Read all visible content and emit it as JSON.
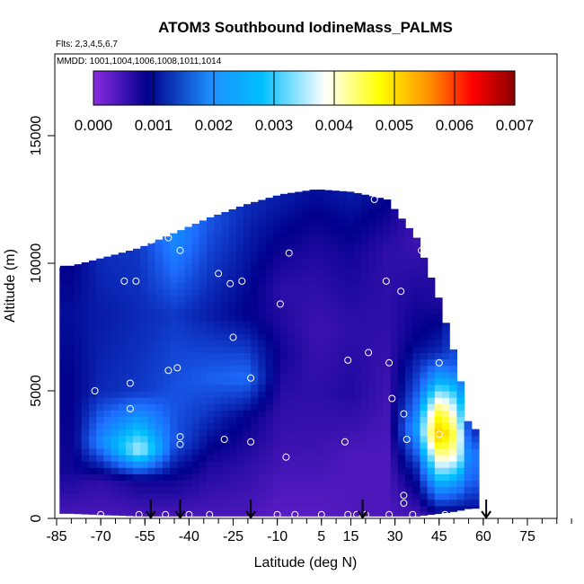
{
  "chart_data": {
    "type": "heatmap",
    "title": "ATOM3 Southbound IodineMass_PALMS",
    "subtitle_flights": "Flts: 2,3,4,5,6,7",
    "subtitle_dates": "MMDD: 1001,1004,1006,1008,1011,1014",
    "xlabel": "Latitude (deg N)",
    "ylabel": "Altitude (m)",
    "xlim": [
      -85,
      90
    ],
    "ylim": [
      0,
      17500
    ],
    "xticks": [
      -85,
      -70,
      -55,
      -40,
      -25,
      -10,
      5,
      15,
      30,
      45,
      60,
      75
    ],
    "yticks": [
      0,
      5000,
      10000,
      15000
    ],
    "colorbar": {
      "range": [
        0,
        0.007
      ],
      "ticks": [
        "0.000",
        "0.001",
        "0.002",
        "0.003",
        "0.004",
        "0.005",
        "0.006",
        "0.007"
      ],
      "colors": [
        "#8a2be2",
        "#00008b",
        "#1e90ff",
        "#00bfff",
        "#ffffff",
        "#ffff00",
        "#ff8c00",
        "#ff0000",
        "#8b0000"
      ]
    },
    "columns": [
      {
        "x": -81,
        "ymin": 200,
        "ymax": 9900,
        "values": [
          [
            0,
            0.0004
          ],
          [
            2000,
            0.0008
          ],
          [
            5000,
            0.0009
          ],
          [
            8000,
            0.001
          ],
          [
            9900,
            0.0009
          ]
        ]
      },
      {
        "x": -71,
        "ymin": 150,
        "ymax": 10200,
        "values": [
          [
            0,
            0.0004
          ],
          [
            1500,
            0.0006
          ],
          [
            3000,
            0.002
          ],
          [
            5000,
            0.0012
          ],
          [
            8000,
            0.0011
          ],
          [
            10000,
            0.0012
          ]
        ]
      },
      {
        "x": -58,
        "ymin": 100,
        "ymax": 10600,
        "values": [
          [
            0,
            0.0004
          ],
          [
            1500,
            0.0008
          ],
          [
            2700,
            0.0033
          ],
          [
            3500,
            0.0025
          ],
          [
            5000,
            0.0013
          ],
          [
            8000,
            0.0012
          ],
          [
            10500,
            0.0013
          ]
        ]
      },
      {
        "x": -46,
        "ymin": 100,
        "ymax": 11200,
        "values": [
          [
            0,
            0.0004
          ],
          [
            1500,
            0.0008
          ],
          [
            3000,
            0.0015
          ],
          [
            5000,
            0.0015
          ],
          [
            8000,
            0.0013
          ],
          [
            11000,
            0.002
          ]
        ]
      },
      {
        "x": -34,
        "ymin": 100,
        "ymax": 11800,
        "values": [
          [
            0,
            0.0004
          ],
          [
            2000,
            0.0007
          ],
          [
            3500,
            0.0011
          ],
          [
            5500,
            0.0016
          ],
          [
            8000,
            0.0011
          ],
          [
            11500,
            0.0015
          ]
        ]
      },
      {
        "x": -22,
        "ymin": 100,
        "ymax": 12300,
        "values": [
          [
            0,
            0.0004
          ],
          [
            2000,
            0.0006
          ],
          [
            4000,
            0.0009
          ],
          [
            5500,
            0.0017
          ],
          [
            8000,
            0.0009
          ],
          [
            12000,
            0.0012
          ]
        ]
      },
      {
        "x": -10,
        "ymin": 100,
        "ymax": 12700,
        "values": [
          [
            0,
            0.0003
          ],
          [
            2500,
            0.0005
          ],
          [
            4500,
            0.0006
          ],
          [
            6500,
            0.0008
          ],
          [
            9000,
            0.0006
          ],
          [
            12500,
            0.0011
          ]
        ]
      },
      {
        "x": 2,
        "ymin": 100,
        "ymax": 12900,
        "values": [
          [
            0,
            0.0003
          ],
          [
            2500,
            0.0005
          ],
          [
            5000,
            0.0006
          ],
          [
            7500,
            0.0005
          ],
          [
            10500,
            0.0007
          ],
          [
            12800,
            0.001
          ]
        ]
      },
      {
        "x": 14,
        "ymin": 100,
        "ymax": 12800,
        "values": [
          [
            0,
            0.0004
          ],
          [
            2500,
            0.0004
          ],
          [
            5000,
            0.0007
          ],
          [
            7500,
            0.0006
          ],
          [
            10500,
            0.0008
          ],
          [
            12700,
            0.0011
          ]
        ]
      },
      {
        "x": 26,
        "ymin": 100,
        "ymax": 12500,
        "values": [
          [
            0,
            0.0004
          ],
          [
            2500,
            0.0004
          ],
          [
            5000,
            0.0005
          ],
          [
            7500,
            0.0006
          ],
          [
            10500,
            0.0006
          ],
          [
            12400,
            0.0009
          ]
        ]
      },
      {
        "x": 36,
        "ymin": 100,
        "ymax": 11000,
        "values": [
          [
            0,
            0.0004
          ],
          [
            2000,
            0.0012
          ],
          [
            3500,
            0.0022
          ],
          [
            5000,
            0.0015
          ],
          [
            7000,
            0.0009
          ],
          [
            10000,
            0.0006
          ],
          [
            11000,
            0.0005
          ]
        ]
      },
      {
        "x": 44,
        "ymin": 200,
        "ymax": 8500,
        "values": [
          [
            0,
            0.0006
          ],
          [
            1500,
            0.0025
          ],
          [
            2500,
            0.004
          ],
          [
            3300,
            0.0052
          ],
          [
            4200,
            0.0044
          ],
          [
            5300,
            0.0025
          ],
          [
            6500,
            0.0012
          ],
          [
            8500,
            0.0007
          ]
        ]
      },
      {
        "x": 50,
        "ymin": 300,
        "ymax": 6000,
        "values": [
          [
            0,
            0.0006
          ],
          [
            1500,
            0.0022
          ],
          [
            2500,
            0.0036
          ],
          [
            3300,
            0.004
          ],
          [
            4500,
            0.003
          ],
          [
            6000,
            0.0015
          ]
        ]
      },
      {
        "x": 54,
        "ymin": 400,
        "ymax": 3500,
        "values": [
          [
            0,
            0.0008
          ],
          [
            1500,
            0.0016
          ],
          [
            2500,
            0.0018
          ],
          [
            3500,
            0.0012
          ]
        ]
      }
    ],
    "observation_points": [
      {
        "x": -85,
        "y": 9900
      },
      {
        "x": -72,
        "y": 5000
      },
      {
        "x": -70,
        "y": 150
      },
      {
        "x": -62,
        "y": 9300
      },
      {
        "x": -58,
        "y": 9300
      },
      {
        "x": -60,
        "y": 5300
      },
      {
        "x": -60,
        "y": 4300
      },
      {
        "x": -53,
        "y": 10900
      },
      {
        "x": -47,
        "y": 11000
      },
      {
        "x": -43,
        "y": 10500
      },
      {
        "x": -47,
        "y": 5800
      },
      {
        "x": -44,
        "y": 5900
      },
      {
        "x": -43,
        "y": 3200
      },
      {
        "x": -43,
        "y": 2900
      },
      {
        "x": -30,
        "y": 9600
      },
      {
        "x": -26,
        "y": 9200
      },
      {
        "x": -22,
        "y": 9300
      },
      {
        "x": -25,
        "y": 7100
      },
      {
        "x": -28,
        "y": 3100
      },
      {
        "x": -17,
        "y": 12600
      },
      {
        "x": -19,
        "y": 5500
      },
      {
        "x": -19,
        "y": 3000
      },
      {
        "x": -6,
        "y": 10400
      },
      {
        "x": -9,
        "y": 8400
      },
      {
        "x": -7,
        "y": 2400
      },
      {
        "x": 14,
        "y": 6200
      },
      {
        "x": 13,
        "y": 3000
      },
      {
        "x": 23,
        "y": 12500
      },
      {
        "x": 21,
        "y": 6500
      },
      {
        "x": 27,
        "y": 9300
      },
      {
        "x": 28,
        "y": 6100
      },
      {
        "x": 32,
        "y": 8900
      },
      {
        "x": 29,
        "y": 4700
      },
      {
        "x": 33,
        "y": 4100
      },
      {
        "x": 34,
        "y": 3100
      },
      {
        "x": 39,
        "y": 10500
      },
      {
        "x": 45,
        "y": 6100
      },
      {
        "x": 45,
        "y": 3300
      },
      {
        "x": 33,
        "y": 900
      },
      {
        "x": 33,
        "y": 600
      },
      {
        "x": -57,
        "y": 150
      },
      {
        "x": -48,
        "y": 150
      },
      {
        "x": -40,
        "y": 150
      },
      {
        "x": -33,
        "y": 150
      },
      {
        "x": -10,
        "y": 150
      },
      {
        "x": -4,
        "y": 150
      },
      {
        "x": 5,
        "y": 150
      },
      {
        "x": 14,
        "y": 150
      },
      {
        "x": 17,
        "y": 150
      },
      {
        "x": 20,
        "y": 150
      },
      {
        "x": 28,
        "y": 150
      },
      {
        "x": 36,
        "y": 150
      },
      {
        "x": 47,
        "y": 150
      },
      {
        "x": 54,
        "y": 100
      }
    ],
    "arrow_markers_lat": [
      -53,
      -43,
      -19,
      19,
      61
    ]
  }
}
